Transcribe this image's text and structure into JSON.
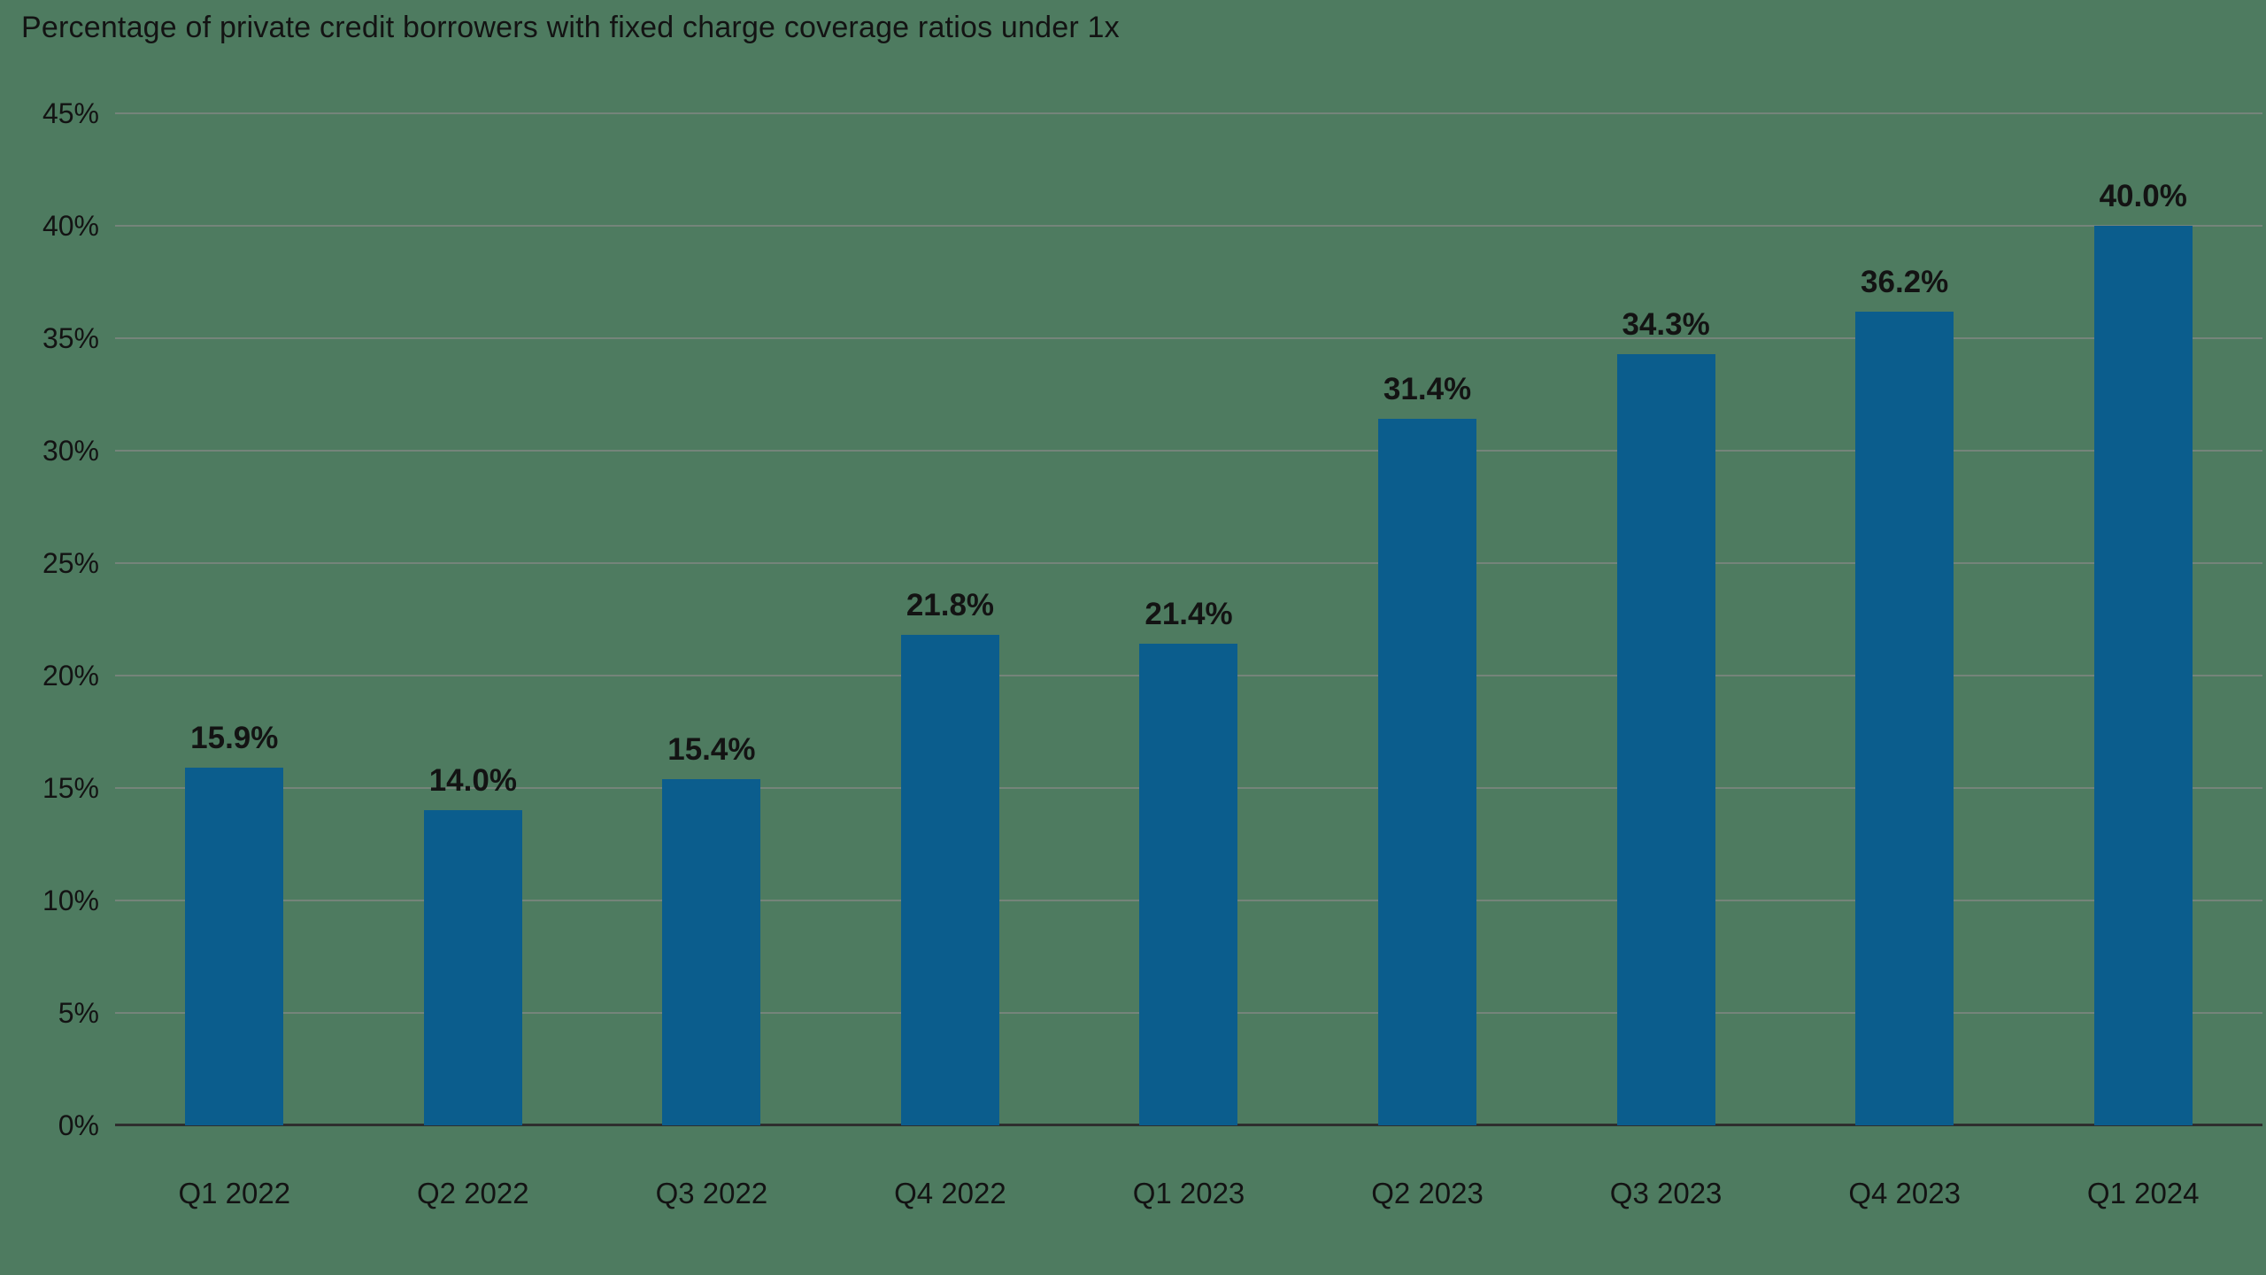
{
  "chart_data": {
    "type": "bar",
    "title": "Percentage of private credit borrowers with fixed charge coverage ratios under 1x",
    "categories": [
      "Q1 2022",
      "Q2 2022",
      "Q3 2022",
      "Q4 2022",
      "Q1 2023",
      "Q2 2023",
      "Q3 2023",
      "Q4 2023",
      "Q1 2024"
    ],
    "values": [
      15.9,
      14.0,
      15.4,
      21.8,
      21.4,
      31.4,
      34.3,
      36.2,
      40.0
    ],
    "value_labels": [
      "15.9%",
      "14.0%",
      "15.4%",
      "21.8%",
      "21.4%",
      "31.4%",
      "34.3%",
      "36.2%",
      "40.0%"
    ],
    "xlabel": "",
    "ylabel": "",
    "ylim": [
      0,
      45
    ],
    "ytick_step": 5,
    "ytick_labels": [
      "0%",
      "5%",
      "10%",
      "15%",
      "20%",
      "25%",
      "30%",
      "35%",
      "40%",
      "45%"
    ],
    "grid": true,
    "legend": "none",
    "colors": {
      "bar": "#0b5d8d",
      "background": "#4e7b60",
      "gridline": "#75847a",
      "baseline": "#2e2e2e",
      "text": "#131313"
    }
  }
}
